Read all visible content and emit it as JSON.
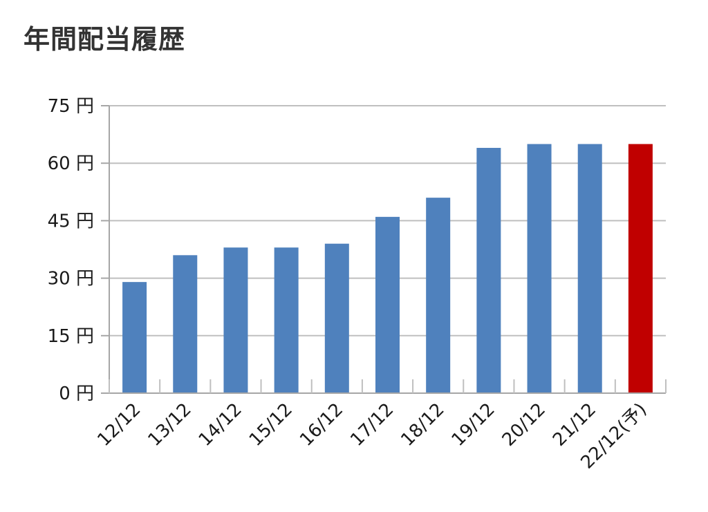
{
  "chart_data": {
    "type": "bar",
    "title": "年間配当履歴",
    "categories": [
      "12/12",
      "13/12",
      "14/12",
      "15/12",
      "16/12",
      "17/12",
      "18/12",
      "19/12",
      "20/12",
      "21/12",
      "22/12(予)"
    ],
    "values": [
      29,
      36,
      38,
      38,
      39,
      46,
      51,
      64,
      65,
      65,
      65
    ],
    "forecast": [
      false,
      false,
      false,
      false,
      false,
      false,
      false,
      false,
      false,
      false,
      true
    ],
    "y_ticks": [
      0,
      15,
      30,
      45,
      60,
      75
    ],
    "y_unit": "円",
    "ylim": [
      0,
      75
    ],
    "xlabel": "",
    "ylabel": "",
    "grid": true,
    "colors": {
      "bar": "#4f81bd",
      "forecast_bar": "#c00000",
      "grid": "#bfbfbf",
      "axis": "#a6a6a6"
    }
  }
}
